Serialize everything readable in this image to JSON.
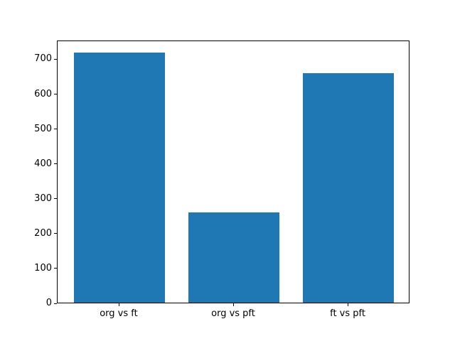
{
  "chart_data": {
    "type": "bar",
    "title": "",
    "xlabel": "",
    "ylabel": "",
    "categories": [
      "org vs ft",
      "org vs pft",
      "ft vs pft"
    ],
    "values": [
      718,
      258,
      659
    ],
    "x": [
      0,
      1,
      2
    ],
    "bar_width": 0.8,
    "bar_color": "#1f77b4",
    "xlim": [
      -0.54,
      2.54
    ],
    "ylim": [
      0,
      754
    ],
    "yticks": [
      0,
      100,
      200,
      300,
      400,
      500,
      600,
      700
    ],
    "grid": false,
    "legend": false,
    "background_color": "#ffffff",
    "spine_color": "#000000"
  }
}
